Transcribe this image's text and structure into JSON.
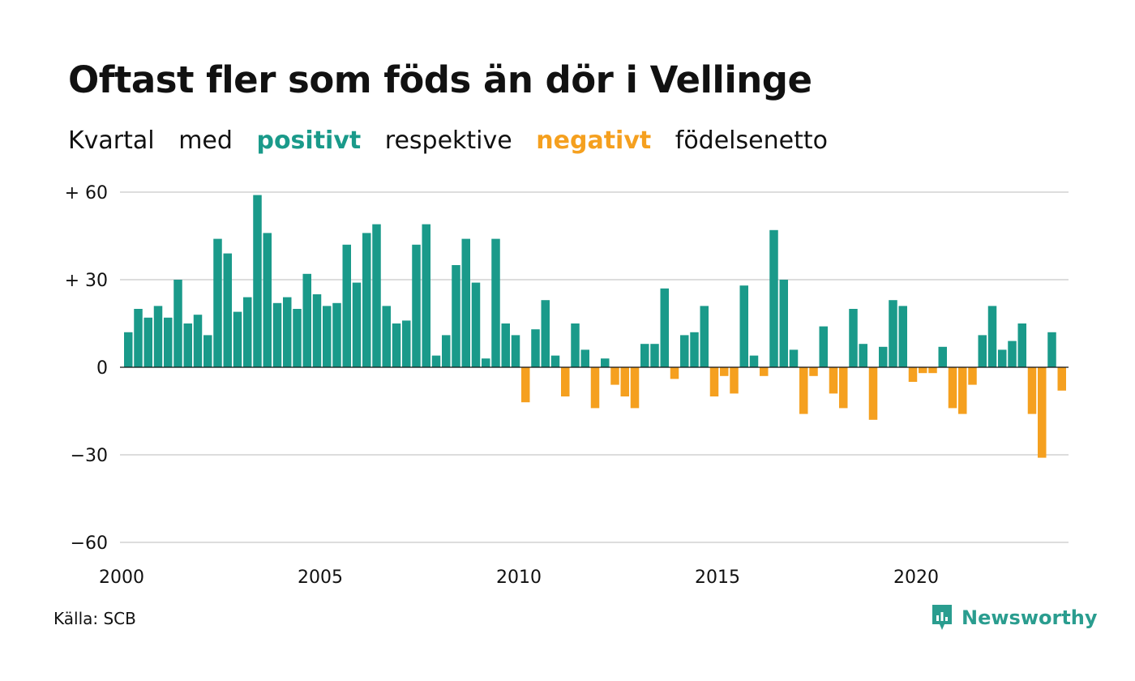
{
  "title": "Oftast fler som föds än dör i Vellinge",
  "subtitle": {
    "w1": "Kvartal",
    "w2": "med",
    "positive_word": "positivt",
    "w3": "respektive",
    "negative_word": "negativt",
    "w4": "födelsenetto"
  },
  "colors": {
    "positive": "#1a9a8a",
    "negative": "#f5a01f",
    "grid": "#dddddd",
    "text": "#111111",
    "brand": "#2a9d8f"
  },
  "source": "Källa: SCB",
  "brand": {
    "name": "Newsworthy",
    "icon": "newsworthy-chart-bubble-icon"
  },
  "chart_data": {
    "type": "bar",
    "x_start": 2000,
    "x_step": 0.25,
    "values": [
      12,
      20,
      17,
      21,
      17,
      30,
      15,
      18,
      11,
      44,
      39,
      19,
      24,
      59,
      46,
      22,
      24,
      20,
      32,
      25,
      21,
      22,
      42,
      29,
      46,
      49,
      21,
      15,
      16,
      42,
      49,
      4,
      11,
      35,
      44,
      29,
      3,
      44,
      15,
      11,
      -12,
      13,
      23,
      4,
      -10,
      15,
      6,
      -14,
      3,
      -6,
      -10,
      -14,
      8,
      8,
      27,
      -4,
      11,
      12,
      21,
      -10,
      -3,
      -9,
      28,
      4,
      -3,
      47,
      30,
      6,
      -16,
      -3,
      14,
      -9,
      -14,
      20,
      8,
      -18,
      7,
      23,
      21,
      -5,
      -2,
      -2,
      7,
      -14,
      -16,
      -6,
      11,
      21,
      6,
      9,
      15,
      -16,
      -31,
      12,
      -8
    ],
    "ylim": [
      -60,
      60
    ],
    "yticks": [
      60,
      30,
      0,
      -30,
      -60
    ],
    "ytick_labels": [
      "+ 60",
      "+ 30",
      "0",
      "−30",
      "−60"
    ],
    "xticks": [
      2000,
      2005,
      2010,
      2015,
      2020
    ],
    "xtick_labels": [
      "2000",
      "2005",
      "2010",
      "2015",
      "2020"
    ],
    "grid": true,
    "xlabel": "",
    "ylabel": ""
  }
}
